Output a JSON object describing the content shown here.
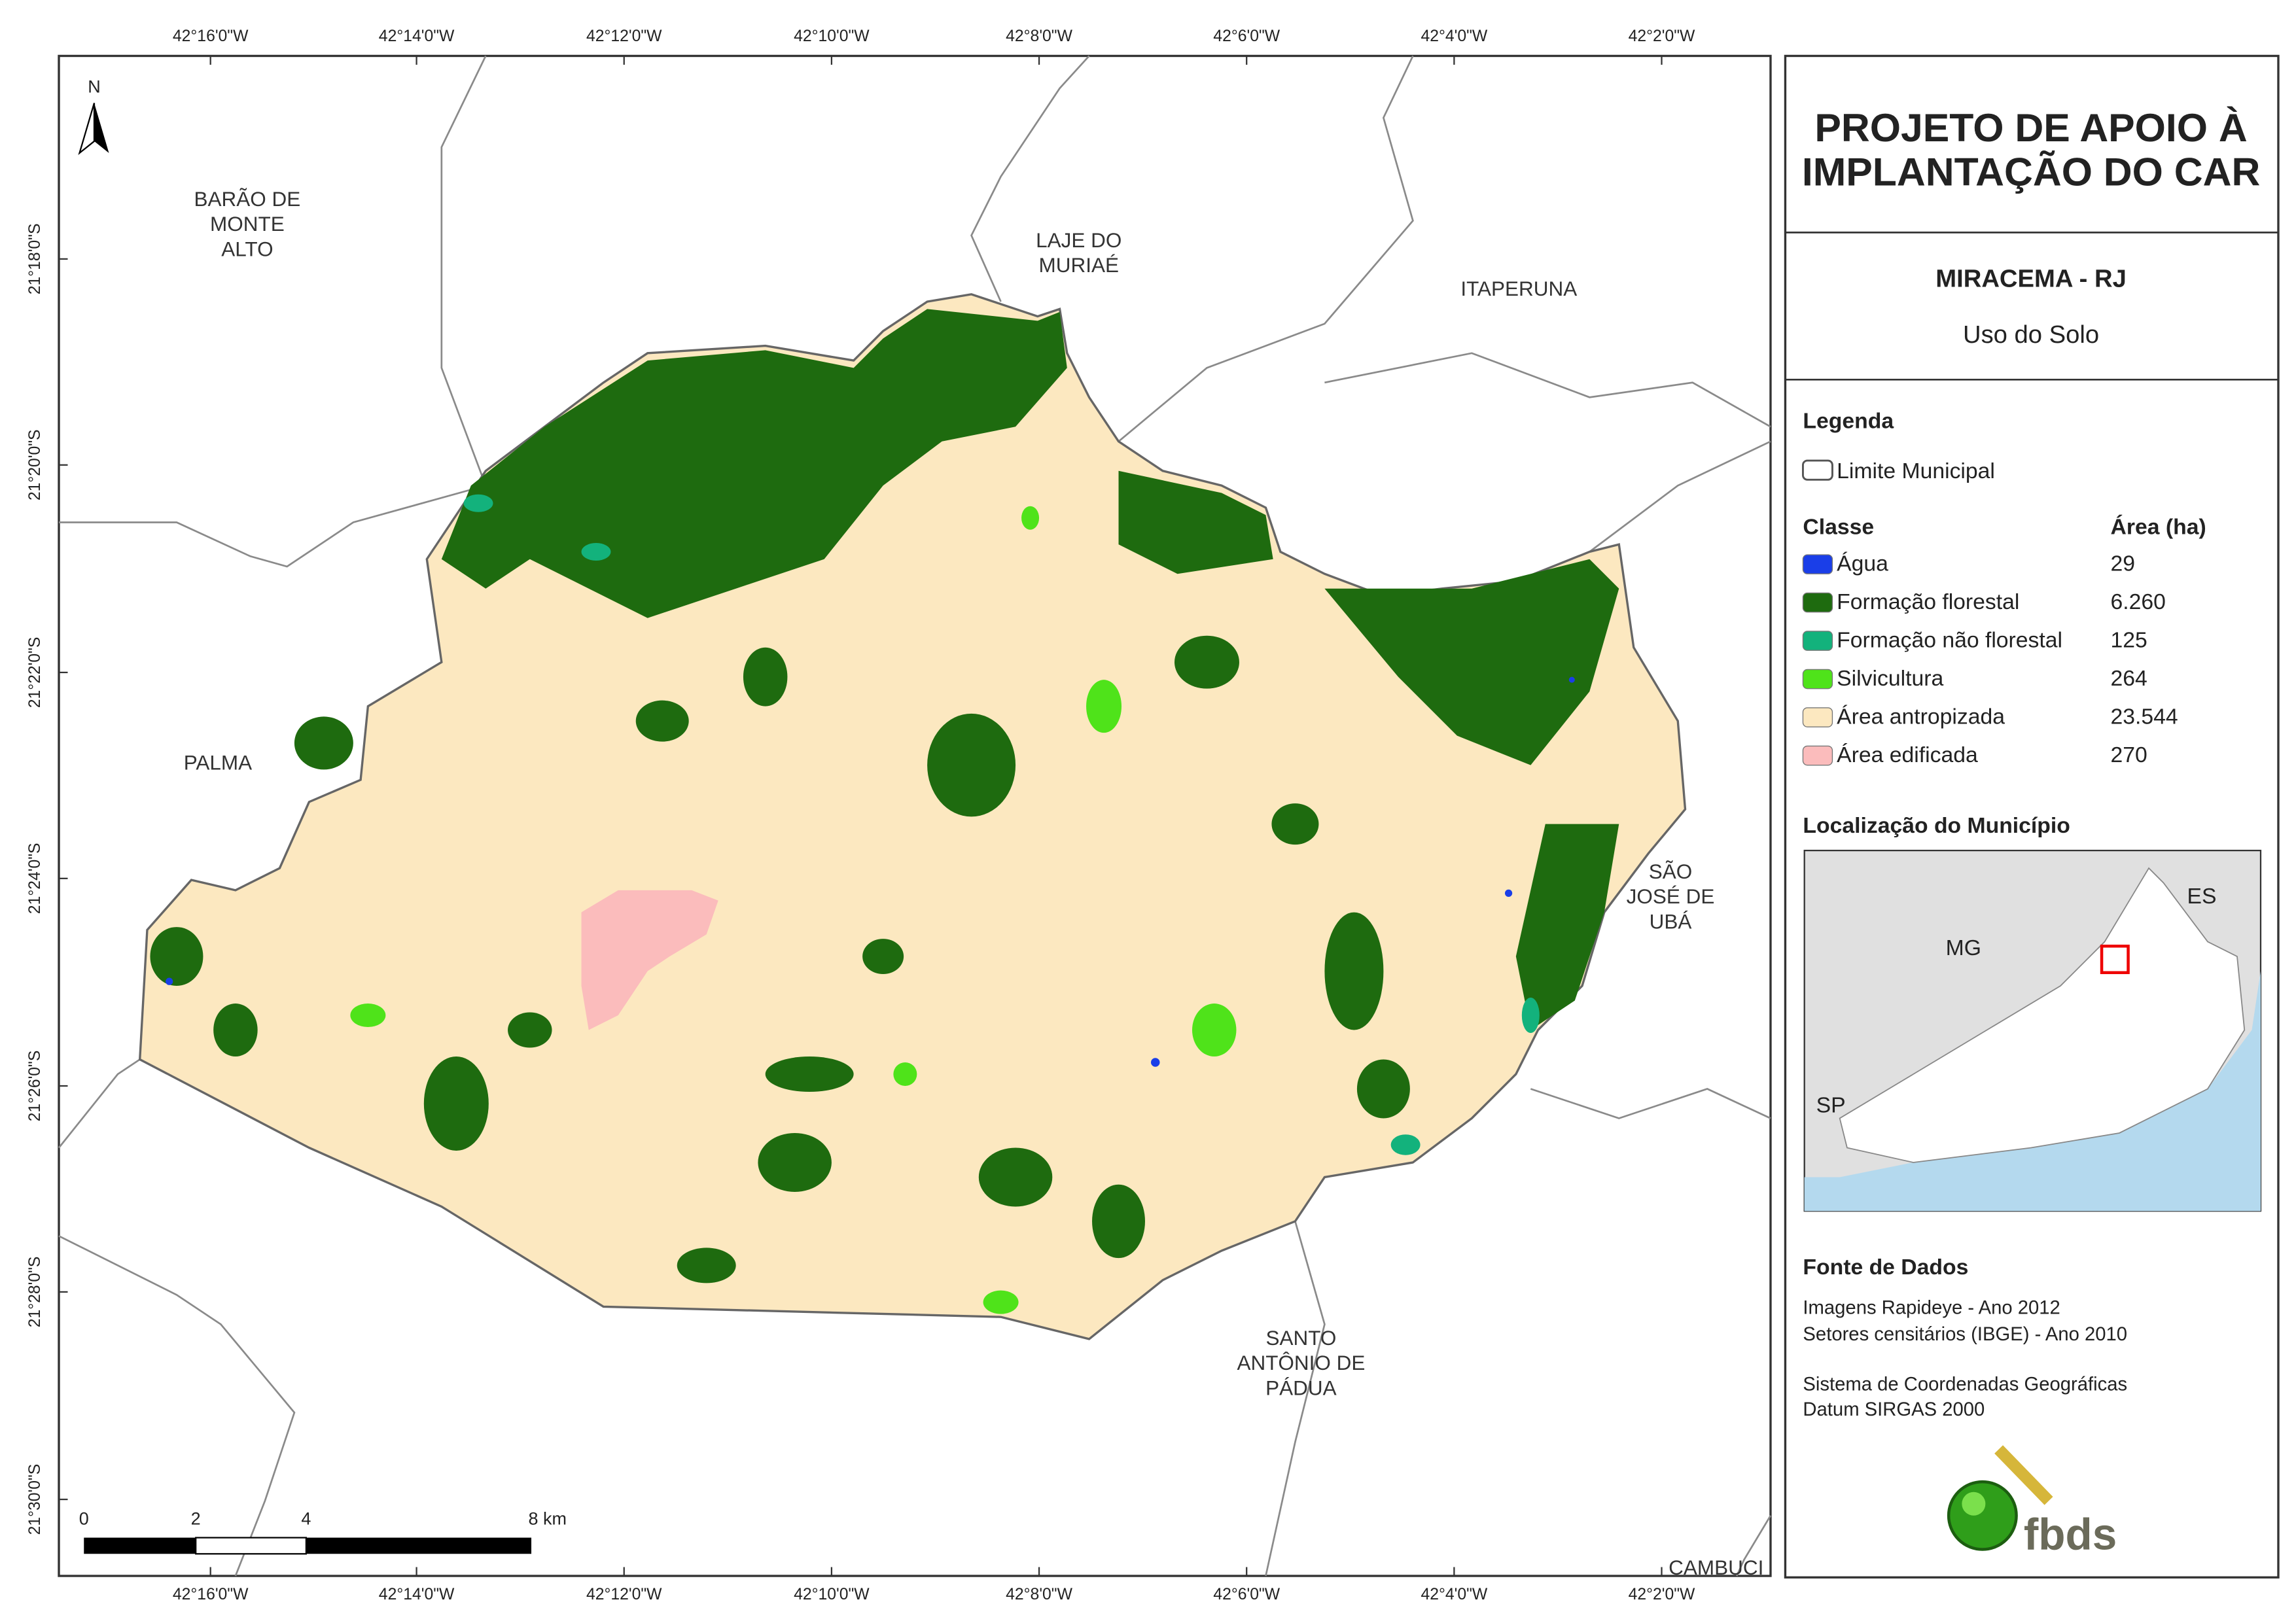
{
  "header": {
    "title_lines": [
      "PROJETO DE APOIO À",
      "IMPLANTAÇÃO DO CAR"
    ],
    "municipality": "MIRACEMA - RJ",
    "theme": "Uso do Solo"
  },
  "legend": {
    "title": "Legenda",
    "boundary": "Limite Municipal",
    "class_header": "Classe",
    "area_header": "Área (ha)",
    "classes": [
      {
        "name": "Água",
        "color": "#1a3ee8",
        "area": "29"
      },
      {
        "name": "Formação florestal",
        "color": "#1e6b0f",
        "area": "6.260"
      },
      {
        "name": "Formação não florestal",
        "color": "#13b27c",
        "area": "125"
      },
      {
        "name": "Silvicultura",
        "color": "#4fe31a",
        "area": "264"
      },
      {
        "name": "Área antropizada",
        "color": "#fce8c0",
        "area": "23.544"
      },
      {
        "name": "Área edificada",
        "color": "#fbbcbc",
        "area": "270"
      }
    ]
  },
  "locator": {
    "title": "Localização do Município",
    "labels": [
      "ES",
      "MG",
      "SP"
    ]
  },
  "sources": {
    "title": "Fonte de Dados",
    "lines": [
      "Imagens Rapideye - Ano 2012",
      "Setores censitários (IBGE) - Ano 2010",
      "Sistema de Coordenadas Geográficas",
      "Datum SIRGAS 2000"
    ]
  },
  "logo": "fbds",
  "map": {
    "north": "N",
    "lon_labels": [
      "42°16'0\"W",
      "42°14'0\"W",
      "42°12'0\"W",
      "42°10'0\"W",
      "42°8'0\"W",
      "42°6'0\"W",
      "42°4'0\"W",
      "42°2'0\"W"
    ],
    "lat_labels": [
      "21°18'0\"S",
      "21°20'0\"S",
      "21°22'0\"S",
      "21°24'0\"S",
      "21°26'0\"S",
      "21°28'0\"S",
      "21°30'0\"S"
    ],
    "places": [
      [
        "BARÃO DE",
        "MONTE",
        "ALTO"
      ],
      [
        "LAJE DO",
        "MURIAÉ"
      ],
      [
        "ITAPERUNA"
      ],
      [
        "PALMA"
      ],
      [
        "SÃO",
        "JOSÉ DE",
        "UBÁ"
      ],
      [
        "SANTO",
        "ANTÔNIO DE",
        "PÁDUA"
      ],
      [
        "CAMBUCI"
      ]
    ],
    "scale_labels": [
      "0",
      "2",
      "4",
      "8 km"
    ]
  }
}
